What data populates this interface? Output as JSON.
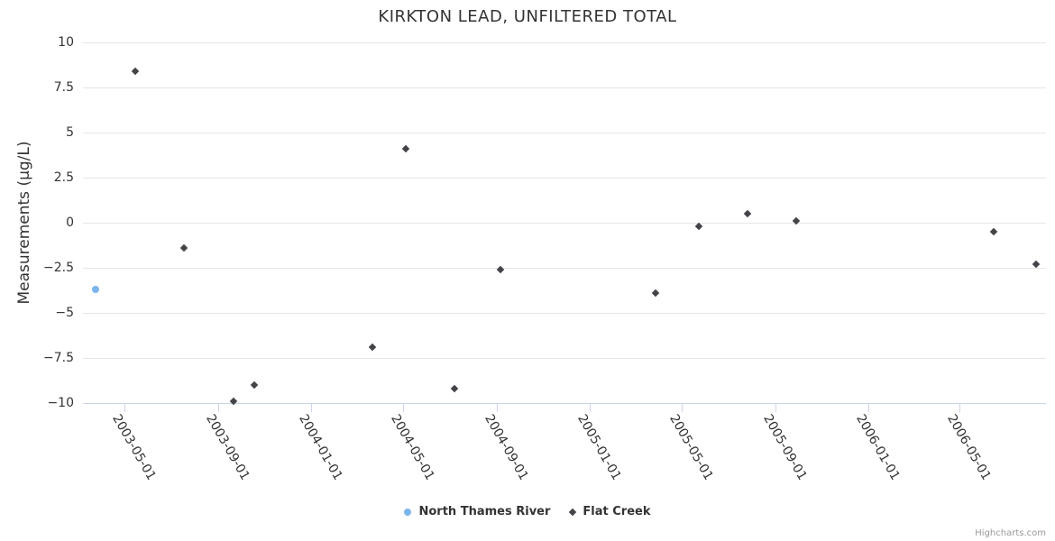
{
  "chart": {
    "title": "KIRKTON LEAD, UNFILTERED TOTAL",
    "y_axis_title": "Measurements (µg/L)",
    "credit": "Highcharts.com",
    "background_color": "#ffffff",
    "gridline_color": "#e6e6e6",
    "axis_line_color": "#ccd6eb",
    "text_color": "#333333"
  },
  "chart_data": {
    "type": "scatter",
    "title": "KIRKTON LEAD, UNFILTERED TOTAL",
    "xlabel": "",
    "ylabel": "Measurements (µg/L)",
    "x_type": "datetime",
    "x_range": [
      "2003-03-08",
      "2006-08-22"
    ],
    "ylim": [
      -10,
      10
    ],
    "y_ticks": [
      10,
      7.5,
      5,
      2.5,
      0,
      -2.5,
      -5,
      -7.5,
      -10
    ],
    "x_ticks": [
      "2003-05-01",
      "2003-09-01",
      "2004-01-01",
      "2004-05-01",
      "2004-09-01",
      "2005-01-01",
      "2005-05-01",
      "2005-09-01",
      "2006-01-01",
      "2006-05-01"
    ],
    "grid": true,
    "legend_position": "bottom-center",
    "series": [
      {
        "name": "North Thames River",
        "color": "#7cb5ec",
        "marker": "circle",
        "points": [
          {
            "x": "2003-03-25",
            "y": -3.7
          }
        ]
      },
      {
        "name": "Flat Creek",
        "color": "#434348",
        "marker": "diamond",
        "points": [
          {
            "x": "2003-05-16",
            "y": 8.4
          },
          {
            "x": "2003-07-19",
            "y": -1.4
          },
          {
            "x": "2003-09-22",
            "y": -9.9
          },
          {
            "x": "2003-10-19",
            "y": -9.0
          },
          {
            "x": "2004-03-22",
            "y": -6.9
          },
          {
            "x": "2004-05-04",
            "y": 4.1
          },
          {
            "x": "2004-07-07",
            "y": -9.2
          },
          {
            "x": "2004-09-06",
            "y": -2.6
          },
          {
            "x": "2005-03-28",
            "y": -3.9
          },
          {
            "x": "2005-05-24",
            "y": -0.2
          },
          {
            "x": "2005-07-26",
            "y": 0.5
          },
          {
            "x": "2005-09-28",
            "y": 0.1
          },
          {
            "x": "2006-06-14",
            "y": -0.5
          },
          {
            "x": "2006-08-09",
            "y": -2.3
          }
        ]
      }
    ]
  }
}
